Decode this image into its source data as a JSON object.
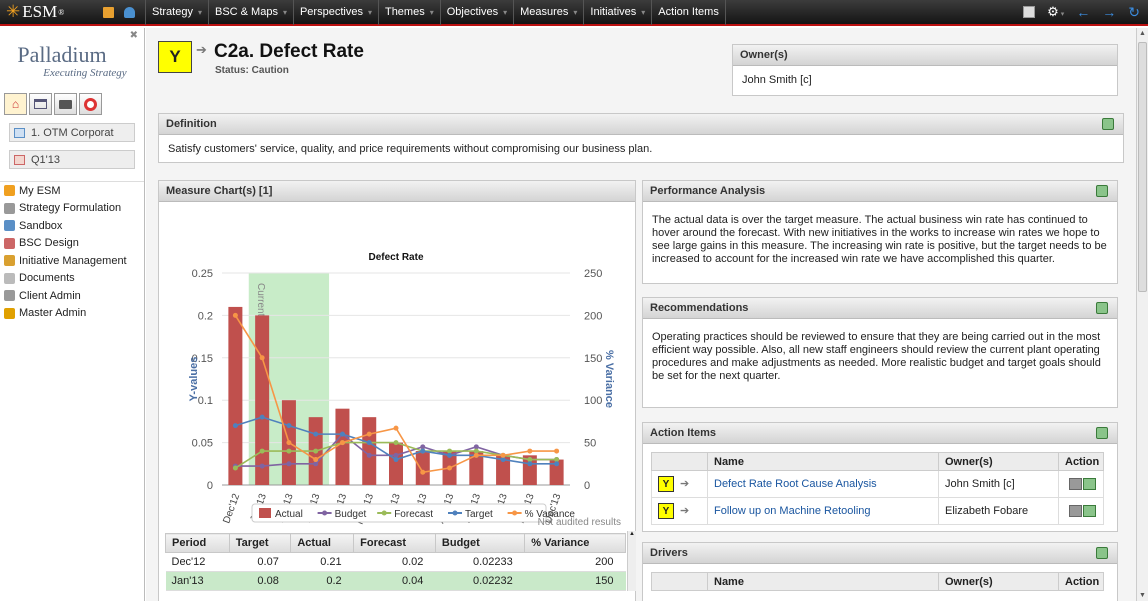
{
  "app": {
    "name": "ESM",
    "reg": "®"
  },
  "nav": [
    "Strategy",
    "BSC & Maps",
    "Perspectives",
    "Themes",
    "Objectives",
    "Measures",
    "Initiatives",
    "Action Items"
  ],
  "nav_dropdown": [
    true,
    true,
    true,
    true,
    true,
    true,
    true,
    false
  ],
  "sidebar": {
    "brand": "Palladium",
    "tagline": "Executing Strategy",
    "org": "1. OTM Corporat",
    "period": "Q1'13",
    "menu": [
      "My ESM",
      "Strategy Formulation",
      "Sandbox",
      "BSC Design",
      "Initiative Management",
      "Documents",
      "Client Admin",
      "Master Admin"
    ]
  },
  "header": {
    "status_letter": "Y",
    "title": "C2a. Defect Rate",
    "status": "Status: Caution"
  },
  "owner": {
    "title": "Owner(s)",
    "name": "John Smith [c]"
  },
  "definition": {
    "title": "Definition",
    "text": "Satisfy customers' service, quality, and price requirements without compromising our business plan."
  },
  "measure_chart": {
    "title": "Measure Chart(s) [1]",
    "note": "Not audited results"
  },
  "chart_data": {
    "type": "bar",
    "title": "Defect Rate",
    "ylabel": "Y-values",
    "y2label": "% Variance",
    "ylim": [
      0,
      0.25
    ],
    "y2lim": [
      0,
      250
    ],
    "yticks": [
      "0",
      "0.05",
      "0.1",
      "0.15",
      "0.2",
      "0.25"
    ],
    "y2ticks": [
      "0",
      "50",
      "100",
      "150",
      "200",
      "250"
    ],
    "categories": [
      "Dec'12",
      "Jan'13",
      "Feb'13",
      "Mar'13",
      "Apr'13",
      "May'13",
      "Jun'13",
      "Jul'13",
      "Aug'13",
      "Sep'13",
      "Oct'13",
      "Nov'13",
      "Dec'13"
    ],
    "band_label": "Current Duration Period",
    "band_range": [
      "Jan'13",
      "Mar'13"
    ],
    "series": [
      {
        "name": "Actual",
        "type": "bar",
        "color": "#c0504d",
        "values": [
          0.21,
          0.2,
          0.1,
          0.08,
          0.09,
          0.08,
          0.05,
          0.04,
          0.04,
          0.04,
          0.035,
          0.035,
          0.03
        ]
      },
      {
        "name": "Budget",
        "type": "line",
        "color": "#8064a2",
        "values": [
          0.02233,
          0.02232,
          0.025,
          0.025,
          0.06,
          0.035,
          0.035,
          0.045,
          0.035,
          0.045,
          0.035,
          0.03,
          0.03
        ]
      },
      {
        "name": "Forecast",
        "type": "line",
        "color": "#9bbb59",
        "values": [
          0.02,
          0.04,
          0.04,
          0.04,
          0.05,
          0.05,
          0.05,
          0.04,
          0.04,
          0.04,
          0.035,
          0.03,
          0.03
        ]
      },
      {
        "name": "Target",
        "type": "line",
        "color": "#4f81bd",
        "values": [
          0.07,
          0.08,
          0.07,
          0.06,
          0.06,
          0.05,
          0.03,
          0.04,
          0.035,
          0.035,
          0.03,
          0.025,
          0.025
        ]
      },
      {
        "name": "% Variance",
        "type": "line",
        "axis": "y2",
        "color": "#f79646",
        "values": [
          200,
          150,
          50,
          30,
          50,
          60,
          67,
          15,
          20,
          35,
          35,
          40,
          40
        ]
      }
    ]
  },
  "data_table": {
    "columns": [
      "Period",
      "Target",
      "Actual",
      "Forecast",
      "Budget",
      "% Variance"
    ],
    "rows": [
      [
        "Dec'12",
        "0.07",
        "0.21",
        "0.02",
        "0.02233",
        "200"
      ],
      [
        "Jan'13",
        "0.08",
        "0.2",
        "0.04",
        "0.02232",
        "150"
      ]
    ]
  },
  "performance": {
    "title": "Performance Analysis",
    "text": "The actual data is over the target measure. The actual business win rate has continued to hover around the forecast.  With new initiatives in the works to increase win rates we hope to see large gains in this measure. The increasing win rate is positive, but the target needs to be increased to account for the increased win rate we have accomplished this quarter."
  },
  "recommendations": {
    "title": "Recommendations",
    "text": "Operating practices should be reviewed to ensure that they are being carried out in the most efficient way possible.  Also, all new staff engineers should review the current plant operating procedures and make adjustments as needed.  More realistic budget and target goals should be set for the next quarter."
  },
  "action_items": {
    "title": "Action Items",
    "columns": [
      "",
      "Name",
      "Owner(s)",
      "Action"
    ],
    "rows": [
      {
        "status": "Y",
        "name": "Defect Rate Root Cause Analysis",
        "owner": "John Smith [c]"
      },
      {
        "status": "Y",
        "name": "Follow up on Machine Retooling",
        "owner": "Elizabeth Fobare"
      }
    ]
  },
  "drivers": {
    "title": "Drivers",
    "columns": [
      "",
      "Name",
      "Owner(s)",
      "Action"
    ]
  }
}
